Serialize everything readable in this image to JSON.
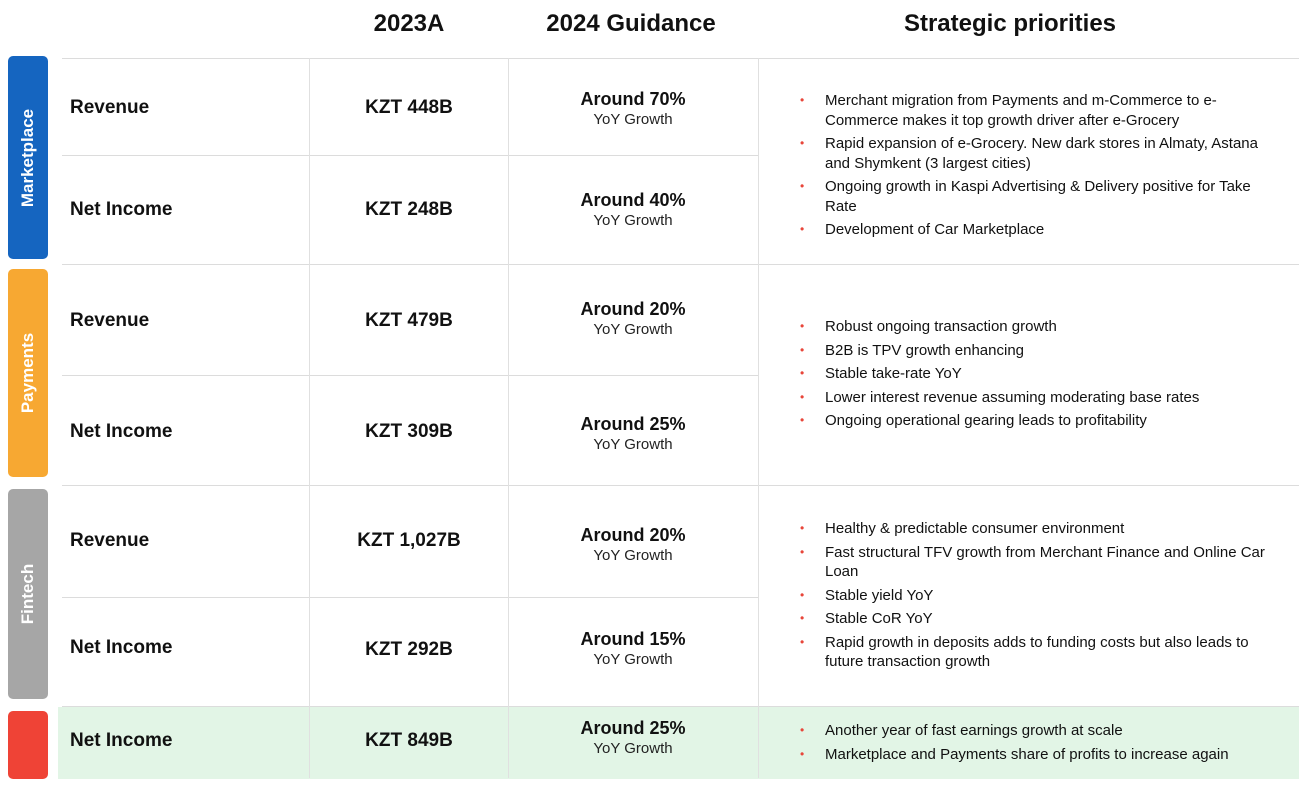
{
  "headers": {
    "col_2023": "2023A",
    "col_2024": "2024 Guidance",
    "col_priorities": "Strategic priorities"
  },
  "colors": {
    "marketplace": "#1565c0",
    "payments": "#f7a832",
    "fintech": "#a6a6a6",
    "total": "#ef4336",
    "bullet": "#e8463a",
    "total_bg": "#e2f5e6"
  },
  "segments": [
    {
      "label": "Marketplace",
      "rows": [
        {
          "metric": "Revenue",
          "value": "KZT 448B",
          "guidance": "Around 70%",
          "guidance_sub": "YoY Growth"
        },
        {
          "metric": "Net Income",
          "value": "KZT 248B",
          "guidance": "Around 40%",
          "guidance_sub": "YoY Growth"
        }
      ],
      "priorities": [
        "Merchant migration from Payments and m-Commerce to e-Commerce makes it top growth driver after e-Grocery",
        "Rapid expansion of e-Grocery. New dark stores in Almaty, Astana and Shymkent (3 largest cities)",
        "Ongoing growth in Kaspi Advertising & Delivery positive for Take Rate",
        "Development of Car Marketplace"
      ]
    },
    {
      "label": "Payments",
      "rows": [
        {
          "metric": "Revenue",
          "value": "KZT 479B",
          "guidance": "Around 20%",
          "guidance_sub": "YoY Growth"
        },
        {
          "metric": "Net Income",
          "value": "KZT 309B",
          "guidance": "Around 25%",
          "guidance_sub": "YoY Growth"
        }
      ],
      "priorities": [
        "Robust ongoing transaction growth",
        "B2B is TPV growth enhancing",
        "Stable take-rate YoY",
        "Lower interest revenue assuming moderating base rates",
        "Ongoing operational gearing leads to profitability"
      ]
    },
    {
      "label": "Fintech",
      "rows": [
        {
          "metric": "Revenue",
          "value": "KZT 1,027B",
          "guidance": "Around 20%",
          "guidance_sub": "YoY Growth"
        },
        {
          "metric": "Net Income",
          "value": "KZT 292B",
          "guidance": "Around 15%",
          "guidance_sub": "YoY Growth"
        }
      ],
      "priorities": [
        "Healthy & predictable consumer environment",
        "Fast structural TFV growth from Merchant Finance and Online Car Loan",
        "Stable yield YoY",
        "Stable CoR YoY",
        "Rapid growth in deposits adds to funding costs but also leads to future transaction growth"
      ]
    }
  ],
  "total": {
    "row": {
      "metric": "Net Income",
      "value": "KZT 849B",
      "guidance": "Around 25%",
      "guidance_sub": "YoY Growth"
    },
    "priorities": [
      "Another year of fast earnings growth at scale",
      "Marketplace and Payments share of profits to increase again"
    ]
  }
}
